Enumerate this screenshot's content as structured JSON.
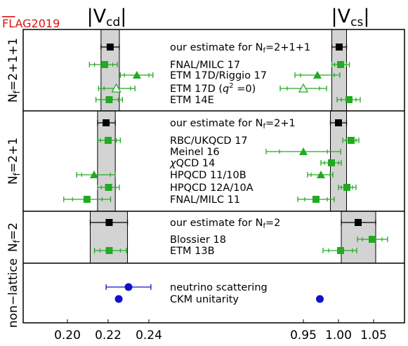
{
  "chart_data": {
    "type": "scatter",
    "badge": "FLAG2019",
    "badge_overline": "FL",
    "badge_rest": "AG2019",
    "title_left": "|V",
    "title_left_sub": "cd",
    "title_left_end": "|",
    "title_right": "|V",
    "title_right_sub": "cs",
    "title_right_end": "|",
    "colors": {
      "estimate": "#000000",
      "lattice": "#22aa22",
      "nonlattice": "#1111cc",
      "band": "#d3d3d3"
    },
    "left_axis": {
      "ticks": [
        0.2,
        0.22,
        0.24
      ],
      "tick_labels": [
        "0.20",
        "0.22",
        "0.24"
      ]
    },
    "right_axis": {
      "ticks": [
        0.95,
        1.0,
        1.05
      ],
      "tick_labels": [
        "0.95",
        "1.00",
        "1.05"
      ]
    },
    "groups": [
      {
        "label_main": "N",
        "label_sub": "f",
        "label_rest": "=2+1+1",
        "band_cd": [
          0.2165,
          0.2255
        ],
        "band_cs": [
          0.9905,
          1.0115
        ],
        "rows": [
          {
            "label": "our estimate for N",
            "label_sub": "f",
            "label_rest": "=2+1+1",
            "kind": "estimate",
            "marker": "square",
            "cd": {
              "v": 0.221,
              "tot": [
                0.2165,
                0.2255
              ],
              "stat": [
                0.2165,
                0.2255
              ]
            },
            "cs": {
              "v": 1.001,
              "tot": [
                0.9905,
                1.0115
              ],
              "stat": [
                0.9905,
                1.0115
              ]
            }
          },
          {
            "label": "FNAL/MILC 17",
            "kind": "lattice",
            "marker": "square",
            "cd": {
              "v": 0.2183,
              "tot": [
                0.2108,
                0.2245
              ],
              "stat": [
                0.2133,
                0.2223
              ]
            },
            "cs": {
              "v": 1.003,
              "tot": [
                0.9905,
                1.0155
              ],
              "stat": [
                0.9945,
                1.0115
              ]
            }
          },
          {
            "label": "ETM 17D/Riggio 17",
            "kind": "lattice",
            "marker": "triangle",
            "cd": {
              "v": 0.2341,
              "tot": [
                0.226,
                0.242
              ],
              "stat": [
                0.228,
                0.24
              ]
            },
            "cs": {
              "v": 0.97,
              "tot": [
                0.938,
                1.002
              ],
              "stat": [
                0.946,
                0.994
              ]
            }
          },
          {
            "label": "ETM 17D (q² =0)",
            "label_pre": "ETM 17D (",
            "label_italic": "q",
            "label_sup": "2",
            "label_post": " =0)",
            "kind": "lattice",
            "marker": "open-triangle",
            "cd": {
              "v": 0.224,
              "tot": [
                0.2153,
                0.2332
              ],
              "stat": [
                0.218,
                0.231
              ]
            },
            "cs": {
              "v": 0.95,
              "tot": [
                0.917,
                0.983
              ],
              "stat": [
                0.927,
                0.973
              ]
            }
          },
          {
            "label": "ETM 14E",
            "kind": "lattice",
            "marker": "square",
            "cd": {
              "v": 0.2205,
              "tot": [
                0.214,
                0.227
              ],
              "stat": [
                0.2163,
                0.225
              ]
            },
            "cs": {
              "v": 1.015,
              "tot": [
                0.998,
                1.031
              ],
              "stat": [
                1.004,
                1.025
              ]
            }
          }
        ]
      },
      {
        "label_main": "N",
        "label_sub": "f",
        "label_rest": "=2+1",
        "band_cd": [
          0.2148,
          0.2235
        ],
        "band_cs": [
          0.9885,
          1.0115
        ],
        "rows": [
          {
            "label": "our estimate for N",
            "label_sub": "f",
            "label_rest": "=2+1",
            "kind": "estimate",
            "marker": "square",
            "cd": {
              "v": 0.219,
              "tot": [
                0.2148,
                0.2235
              ],
              "stat": [
                0.2148,
                0.2235
              ]
            },
            "cs": {
              "v": 1.0,
              "tot": [
                0.9885,
                1.0115
              ],
              "stat": [
                0.9885,
                1.0115
              ]
            }
          },
          {
            "label": "RBC/UKQCD 17",
            "kind": "lattice",
            "marker": "square",
            "cd": {
              "v": 0.22,
              "tot": [
                0.215,
                0.226
              ],
              "stat": [
                0.2163,
                0.224
              ]
            },
            "cs": {
              "v": 1.018,
              "tot": [
                1.006,
                1.029
              ],
              "stat": [
                1.011,
                1.025
              ]
            }
          },
          {
            "label": "Meinel 16",
            "kind": "lattice",
            "marker": "triangle",
            "cd": null,
            "cs": {
              "v": 0.95,
              "tot": [
                0.897,
                1.003
              ],
              "stat": [
                0.916,
                0.984
              ]
            }
          },
          {
            "label": "χQCD 14",
            "label_pre": "",
            "label_italic": "χ",
            "label_post": "QCD 14",
            "kind": "lattice",
            "marker": "square",
            "cd": null,
            "cs": {
              "v": 0.99,
              "tot": [
                0.975,
                1.004
              ],
              "stat": [
                0.98,
                1.0
              ]
            }
          },
          {
            "label": "HPQCD 11/10B",
            "kind": "lattice",
            "marker": "triangle",
            "cd": {
              "v": 0.2131,
              "tot": [
                0.2045,
                0.2234
              ],
              "stat": [
                0.207,
                0.221
              ]
            },
            "cs": {
              "v": 0.975,
              "tot": [
                0.956,
                0.992
              ],
              "stat": [
                0.961,
                0.988
              ]
            }
          },
          {
            "label": "HPQCD 12A/10A",
            "kind": "lattice",
            "marker": "square",
            "cd": {
              "v": 0.2202,
              "tot": [
                0.2148,
                0.2255
              ],
              "stat": [
                0.2166,
                0.2237
              ]
            },
            "cs": {
              "v": 1.012,
              "tot": [
                1.0,
                1.025
              ],
              "stat": [
                1.004,
                1.02
              ]
            }
          },
          {
            "label": "FNAL/MILC 11",
            "kind": "lattice",
            "marker": "square",
            "cd": {
              "v": 0.2096,
              "tot": [
                0.1982,
                0.2212
              ],
              "stat": [
                0.2025,
                0.217
              ]
            },
            "cs": {
              "v": 0.968,
              "tot": [
                0.942,
                0.994
              ],
              "stat": [
                0.952,
                0.984
              ]
            }
          }
        ]
      },
      {
        "label_main": "N",
        "label_sub": "f",
        "label_rest": "=2",
        "band_cd": [
          0.2112,
          0.2295
        ],
        "band_cs": [
          1.004,
          1.053
        ],
        "rows": [
          {
            "label": "our estimate for N",
            "label_sub": "f",
            "label_rest": "=2",
            "kind": "estimate",
            "marker": "square",
            "cd": {
              "v": 0.2205,
              "tot": [
                0.2112,
                0.2295
              ],
              "stat": [
                0.2112,
                0.2295
              ]
            },
            "cs": {
              "v": 1.028,
              "tot": [
                1.004,
                1.053
              ],
              "stat": [
                1.004,
                1.053
              ]
            }
          },
          {
            "label": "Blossier 18",
            "kind": "lattice",
            "marker": "square",
            "cd": null,
            "cs": {
              "v": 1.048,
              "tot": [
                1.027,
                1.07
              ],
              "stat": [
                1.034,
                1.062
              ]
            }
          },
          {
            "label": "ETM 13B",
            "kind": "lattice",
            "marker": "square",
            "cd": {
              "v": 0.2205,
              "tot": [
                0.2133,
                0.229
              ],
              "stat": [
                0.216,
                0.226
              ]
            },
            "cs": {
              "v": 1.003,
              "tot": [
                0.978,
                1.026
              ],
              "stat": [
                0.986,
                1.02
              ]
            }
          }
        ]
      },
      {
        "label_main": "non−lattice",
        "label_sub": "",
        "label_rest": "",
        "band_cd": null,
        "band_cs": null,
        "rows": [
          {
            "label": "neutrino scattering",
            "kind": "nonlattice",
            "marker": "circle",
            "cd": {
              "v": 0.23,
              "tot": [
                0.219,
                0.241
              ],
              "stat": [
                0.219,
                0.241
              ]
            },
            "cs": null
          },
          {
            "label": "CKM unitarity",
            "kind": "nonlattice",
            "marker": "circle",
            "cd": {
              "v": 0.2252,
              "tot": null,
              "stat": null
            },
            "cs": {
              "v": 0.9735,
              "tot": null,
              "stat": null
            }
          }
        ]
      }
    ]
  }
}
